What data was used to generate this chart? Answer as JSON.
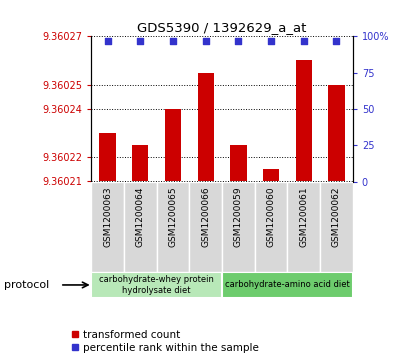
{
  "title": "GDS5390 / 1392629_a_at",
  "samples": [
    "GSM1200063",
    "GSM1200064",
    "GSM1200065",
    "GSM1200066",
    "GSM1200059",
    "GSM1200060",
    "GSM1200061",
    "GSM1200062"
  ],
  "red_values": [
    9.36023,
    9.360225,
    9.36024,
    9.360255,
    9.360225,
    9.360215,
    9.36026,
    9.36025
  ],
  "blue_values": [
    97,
    97,
    97,
    97,
    97,
    97,
    97,
    97
  ],
  "ylim_left": [
    9.36021,
    9.36027
  ],
  "ylim_right": [
    0,
    100
  ],
  "yticks_left": [
    9.36021,
    9.36022,
    9.36024,
    9.36025,
    9.36027
  ],
  "yticks_right": [
    0,
    25,
    50,
    75,
    100
  ],
  "ytick_labels_left": [
    "9.36021",
    "9.36022",
    "9.36024",
    "9.36025",
    "9.36027"
  ],
  "ytick_labels_right": [
    "0",
    "25",
    "50",
    "75",
    "100%"
  ],
  "protocol_groups": [
    {
      "label": "carbohydrate-whey protein\nhydrolysate diet",
      "start": 0,
      "end": 4,
      "color": "#b8e8b8"
    },
    {
      "label": "carbohydrate-amino acid diet",
      "start": 4,
      "end": 8,
      "color": "#6dcc6d"
    }
  ],
  "red_color": "#cc0000",
  "blue_color": "#3333cc",
  "bar_width": 0.5,
  "grid_color": "#000000",
  "sample_box_color": "#d8d8d8",
  "plot_bg": "#ffffff",
  "left_tick_color": "#cc0000",
  "right_tick_color": "#3333cc",
  "legend_red_label": "transformed count",
  "legend_blue_label": "percentile rank within the sample",
  "protocol_label": "protocol"
}
